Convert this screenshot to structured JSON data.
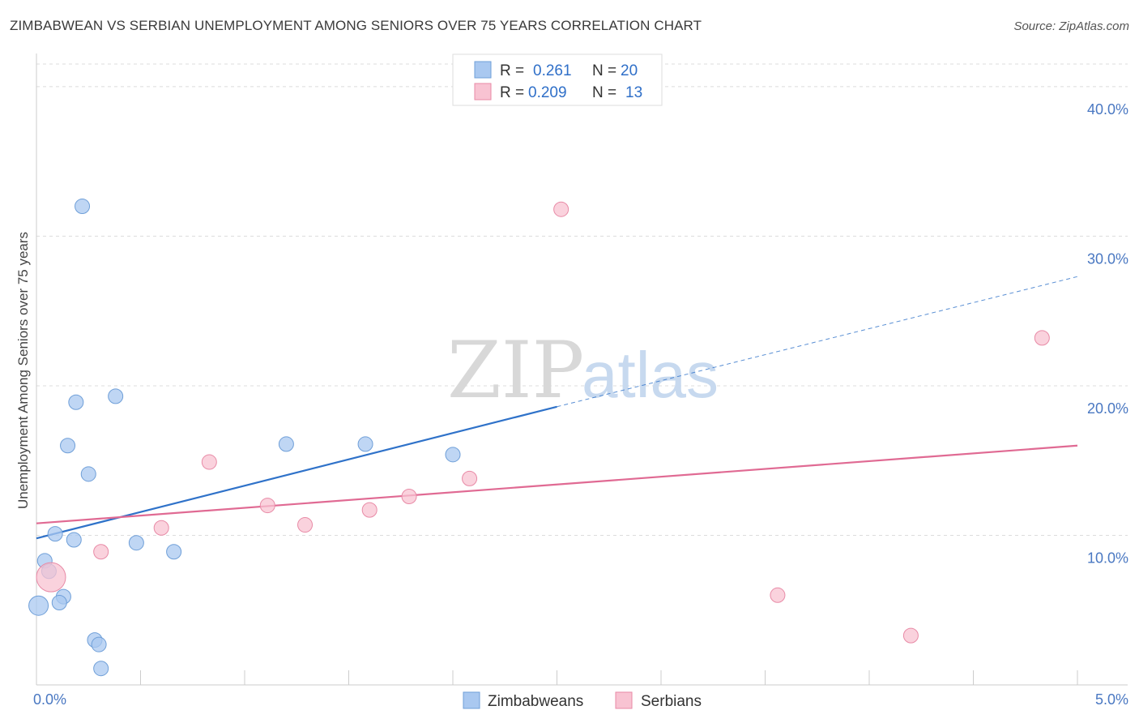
{
  "title": "ZIMBABWEAN VS SERBIAN UNEMPLOYMENT AMONG SENIORS OVER 75 YEARS CORRELATION CHART",
  "source": "Source: ZipAtlas.com",
  "watermark": {
    "zip": "ZIP",
    "atlas": "atlas"
  },
  "legend": {
    "r_label": "R =",
    "n_label": "N =",
    "rows": [
      {
        "r": "0.261",
        "n": "20",
        "color": "#a9c8f0",
        "border": "#6f9fd8"
      },
      {
        "r": "0.209",
        "n": "13",
        "color": "#f8c3d2",
        "border": "#e88aa6"
      }
    ]
  },
  "bottom_legend": [
    "Zimbabweans",
    "Serbians"
  ],
  "chart_data": {
    "type": "scatter",
    "ylabel": "Unemployment Among Seniors over 75 years",
    "xlim": [
      0,
      5
    ],
    "ylim": [
      0,
      42
    ],
    "y_ticks": [
      {
        "value": 10,
        "label": "10.0%"
      },
      {
        "value": 20,
        "label": "20.0%"
      },
      {
        "value": 30,
        "label": "30.0%"
      },
      {
        "value": 40,
        "label": "40.0%"
      }
    ],
    "x_tick_labels": [
      {
        "value": 0,
        "label": "0.0%"
      },
      {
        "value": 5,
        "label": "5.0%"
      }
    ],
    "x_minor_ticks": [
      0,
      0.5,
      1,
      1.5,
      2,
      2.5,
      3,
      3.5,
      4,
      4.5,
      5
    ],
    "grid": true,
    "series": [
      {
        "name": "Zimbabweans",
        "color": "#a9c8f0",
        "stroke": "#6f9fd8",
        "line_color": "#2f72c9",
        "points": [
          {
            "x": 0.22,
            "y": 32.0,
            "r": 9
          },
          {
            "x": 0.19,
            "y": 18.9,
            "r": 9
          },
          {
            "x": 0.38,
            "y": 19.3,
            "r": 9
          },
          {
            "x": 0.15,
            "y": 16.0,
            "r": 9
          },
          {
            "x": 0.25,
            "y": 14.1,
            "r": 9
          },
          {
            "x": 1.2,
            "y": 16.1,
            "r": 9
          },
          {
            "x": 1.58,
            "y": 16.1,
            "r": 9
          },
          {
            "x": 2.0,
            "y": 15.4,
            "r": 9
          },
          {
            "x": 0.09,
            "y": 10.1,
            "r": 9
          },
          {
            "x": 0.18,
            "y": 9.7,
            "r": 9
          },
          {
            "x": 0.48,
            "y": 9.5,
            "r": 9
          },
          {
            "x": 0.66,
            "y": 8.9,
            "r": 9
          },
          {
            "x": 0.04,
            "y": 8.3,
            "r": 9
          },
          {
            "x": 0.06,
            "y": 7.6,
            "r": 9
          },
          {
            "x": 0.13,
            "y": 5.9,
            "r": 9
          },
          {
            "x": 0.11,
            "y": 5.5,
            "r": 9
          },
          {
            "x": 0.01,
            "y": 5.3,
            "r": 12
          },
          {
            "x": 0.28,
            "y": 3.0,
            "r": 9
          },
          {
            "x": 0.3,
            "y": 2.7,
            "r": 9
          },
          {
            "x": 0.31,
            "y": 1.1,
            "r": 9
          }
        ],
        "trend": {
          "x0": 0.0,
          "y0": 9.8,
          "x1": 2.5,
          "y1": 18.6,
          "x_dash_end": 5.0,
          "y_dash_end": 27.3
        }
      },
      {
        "name": "Serbians",
        "color": "#f8c3d2",
        "stroke": "#e88aa6",
        "line_color": "#e06a93",
        "points": [
          {
            "x": 2.52,
            "y": 31.8,
            "r": 9
          },
          {
            "x": 4.83,
            "y": 23.2,
            "r": 9
          },
          {
            "x": 0.83,
            "y": 14.9,
            "r": 9
          },
          {
            "x": 2.08,
            "y": 13.8,
            "r": 9
          },
          {
            "x": 1.79,
            "y": 12.6,
            "r": 9
          },
          {
            "x": 1.11,
            "y": 12.0,
            "r": 9
          },
          {
            "x": 1.6,
            "y": 11.7,
            "r": 9
          },
          {
            "x": 1.29,
            "y": 10.7,
            "r": 9
          },
          {
            "x": 0.6,
            "y": 10.5,
            "r": 9
          },
          {
            "x": 0.31,
            "y": 8.9,
            "r": 9
          },
          {
            "x": 0.07,
            "y": 7.2,
            "r": 18
          },
          {
            "x": 3.56,
            "y": 6.0,
            "r": 9
          },
          {
            "x": 4.2,
            "y": 3.3,
            "r": 9
          }
        ],
        "trend": {
          "x0": 0.0,
          "y0": 10.8,
          "x1": 5.0,
          "y1": 16.0
        }
      }
    ]
  }
}
